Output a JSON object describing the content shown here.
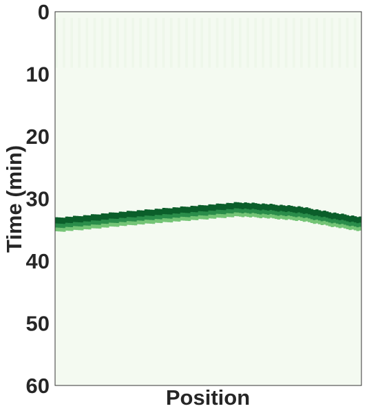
{
  "chart_data": {
    "type": "heatmap",
    "title": "",
    "xlabel": "Position",
    "ylabel": "Time (min)",
    "ylim": [
      0,
      60
    ],
    "y_inverted": true,
    "yticks": [
      0,
      10,
      20,
      30,
      40,
      50,
      60
    ],
    "ytick_labels": [
      "0",
      "10",
      "20",
      "30",
      "40",
      "50",
      "60"
    ],
    "xticks": [],
    "grid": false,
    "colormap": "Greens",
    "background_color": "#f4faf1",
    "band_colors": {
      "dark": "#0b5e2a",
      "mid": "#2a8d4a",
      "light": "#74c476"
    },
    "front": {
      "description_points_position_fraction": [
        0,
        0.1,
        0.2,
        0.3,
        0.4,
        0.5,
        0.6,
        0.7,
        0.8,
        0.9,
        1.0
      ],
      "time_min": [
        33.1,
        32.7,
        32.2,
        31.8,
        31.4,
        31.0,
        30.6,
        30.9,
        31.3,
        32.2,
        33.0
      ],
      "band_width_min": 2.2
    }
  }
}
